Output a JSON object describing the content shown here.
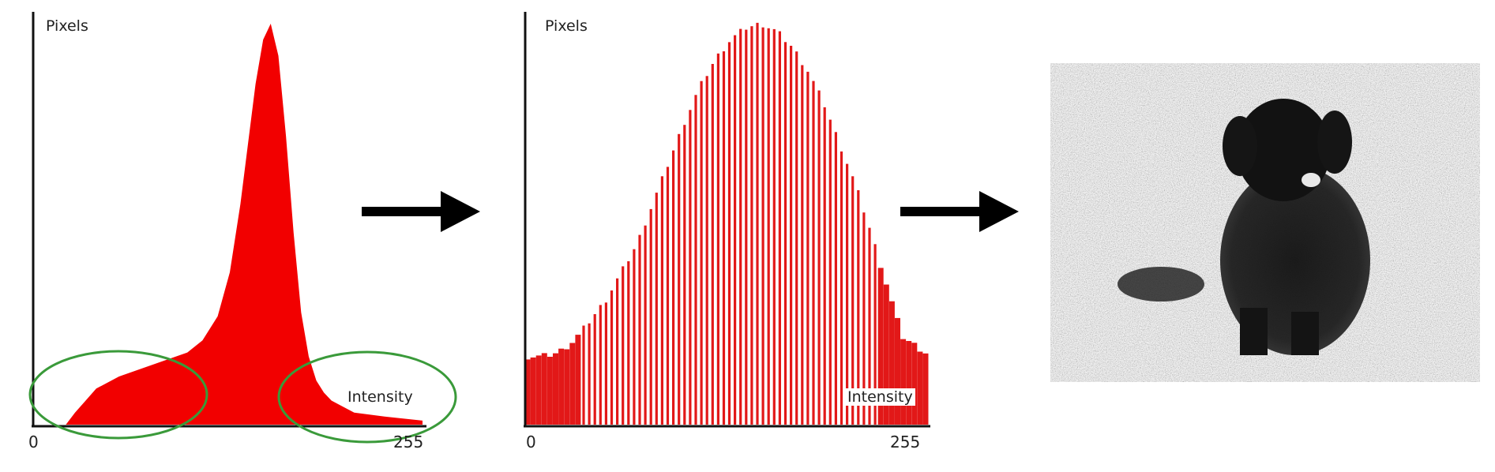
{
  "chart_data": [
    {
      "type": "area",
      "title": "",
      "xlabel": "Intensity",
      "ylabel": "Pixels",
      "x_tick_labels": [
        "0",
        "255"
      ],
      "xlim": [
        0,
        255
      ],
      "series": [
        {
          "color": "#f20000",
          "x": [
            0,
            20,
            26,
            40,
            55,
            70,
            85,
            100,
            110,
            120,
            128,
            135,
            140,
            145,
            150,
            155,
            160,
            165,
            170,
            175,
            180,
            185,
            190,
            195,
            200,
            210,
            230,
            255
          ],
          "values": [
            0,
            0,
            3,
            9,
            12,
            14,
            16,
            18,
            21,
            27,
            38,
            55,
            70,
            85,
            96,
            100,
            92,
            72,
            48,
            28,
            17,
            11,
            8,
            6,
            5,
            3,
            2,
            1
          ]
        }
      ],
      "annotations": [
        {
          "shape": "ellipse",
          "color": "#3a9a3a",
          "region": "low-intensity tail"
        },
        {
          "shape": "ellipse",
          "color": "#3a9a3a",
          "region": "high-intensity tail"
        }
      ]
    },
    {
      "type": "bar",
      "title": "",
      "xlabel": "Intensity",
      "ylabel": "Pixels",
      "x_tick_labels": [
        "0",
        "255"
      ],
      "xlim": [
        0,
        255
      ],
      "series": [
        {
          "color": "#e21818",
          "x": [
            0,
            10,
            20,
            30,
            40,
            50,
            60,
            70,
            80,
            90,
            100,
            110,
            120,
            130,
            140,
            150,
            160,
            170,
            180,
            190,
            200,
            210,
            220,
            230,
            240,
            255
          ],
          "values": [
            17,
            17,
            18,
            21,
            26,
            31,
            38,
            45,
            55,
            65,
            75,
            84,
            91,
            96,
            99,
            100,
            98,
            94,
            88,
            80,
            70,
            60,
            48,
            35,
            22,
            18
          ]
        }
      ]
    }
  ],
  "arrows": [
    {
      "name": "arrow-1",
      "direction": "right"
    },
    {
      "name": "arrow-2",
      "direction": "right"
    }
  ],
  "photo": {
    "subject": "dog-in-grass-grayscale"
  }
}
